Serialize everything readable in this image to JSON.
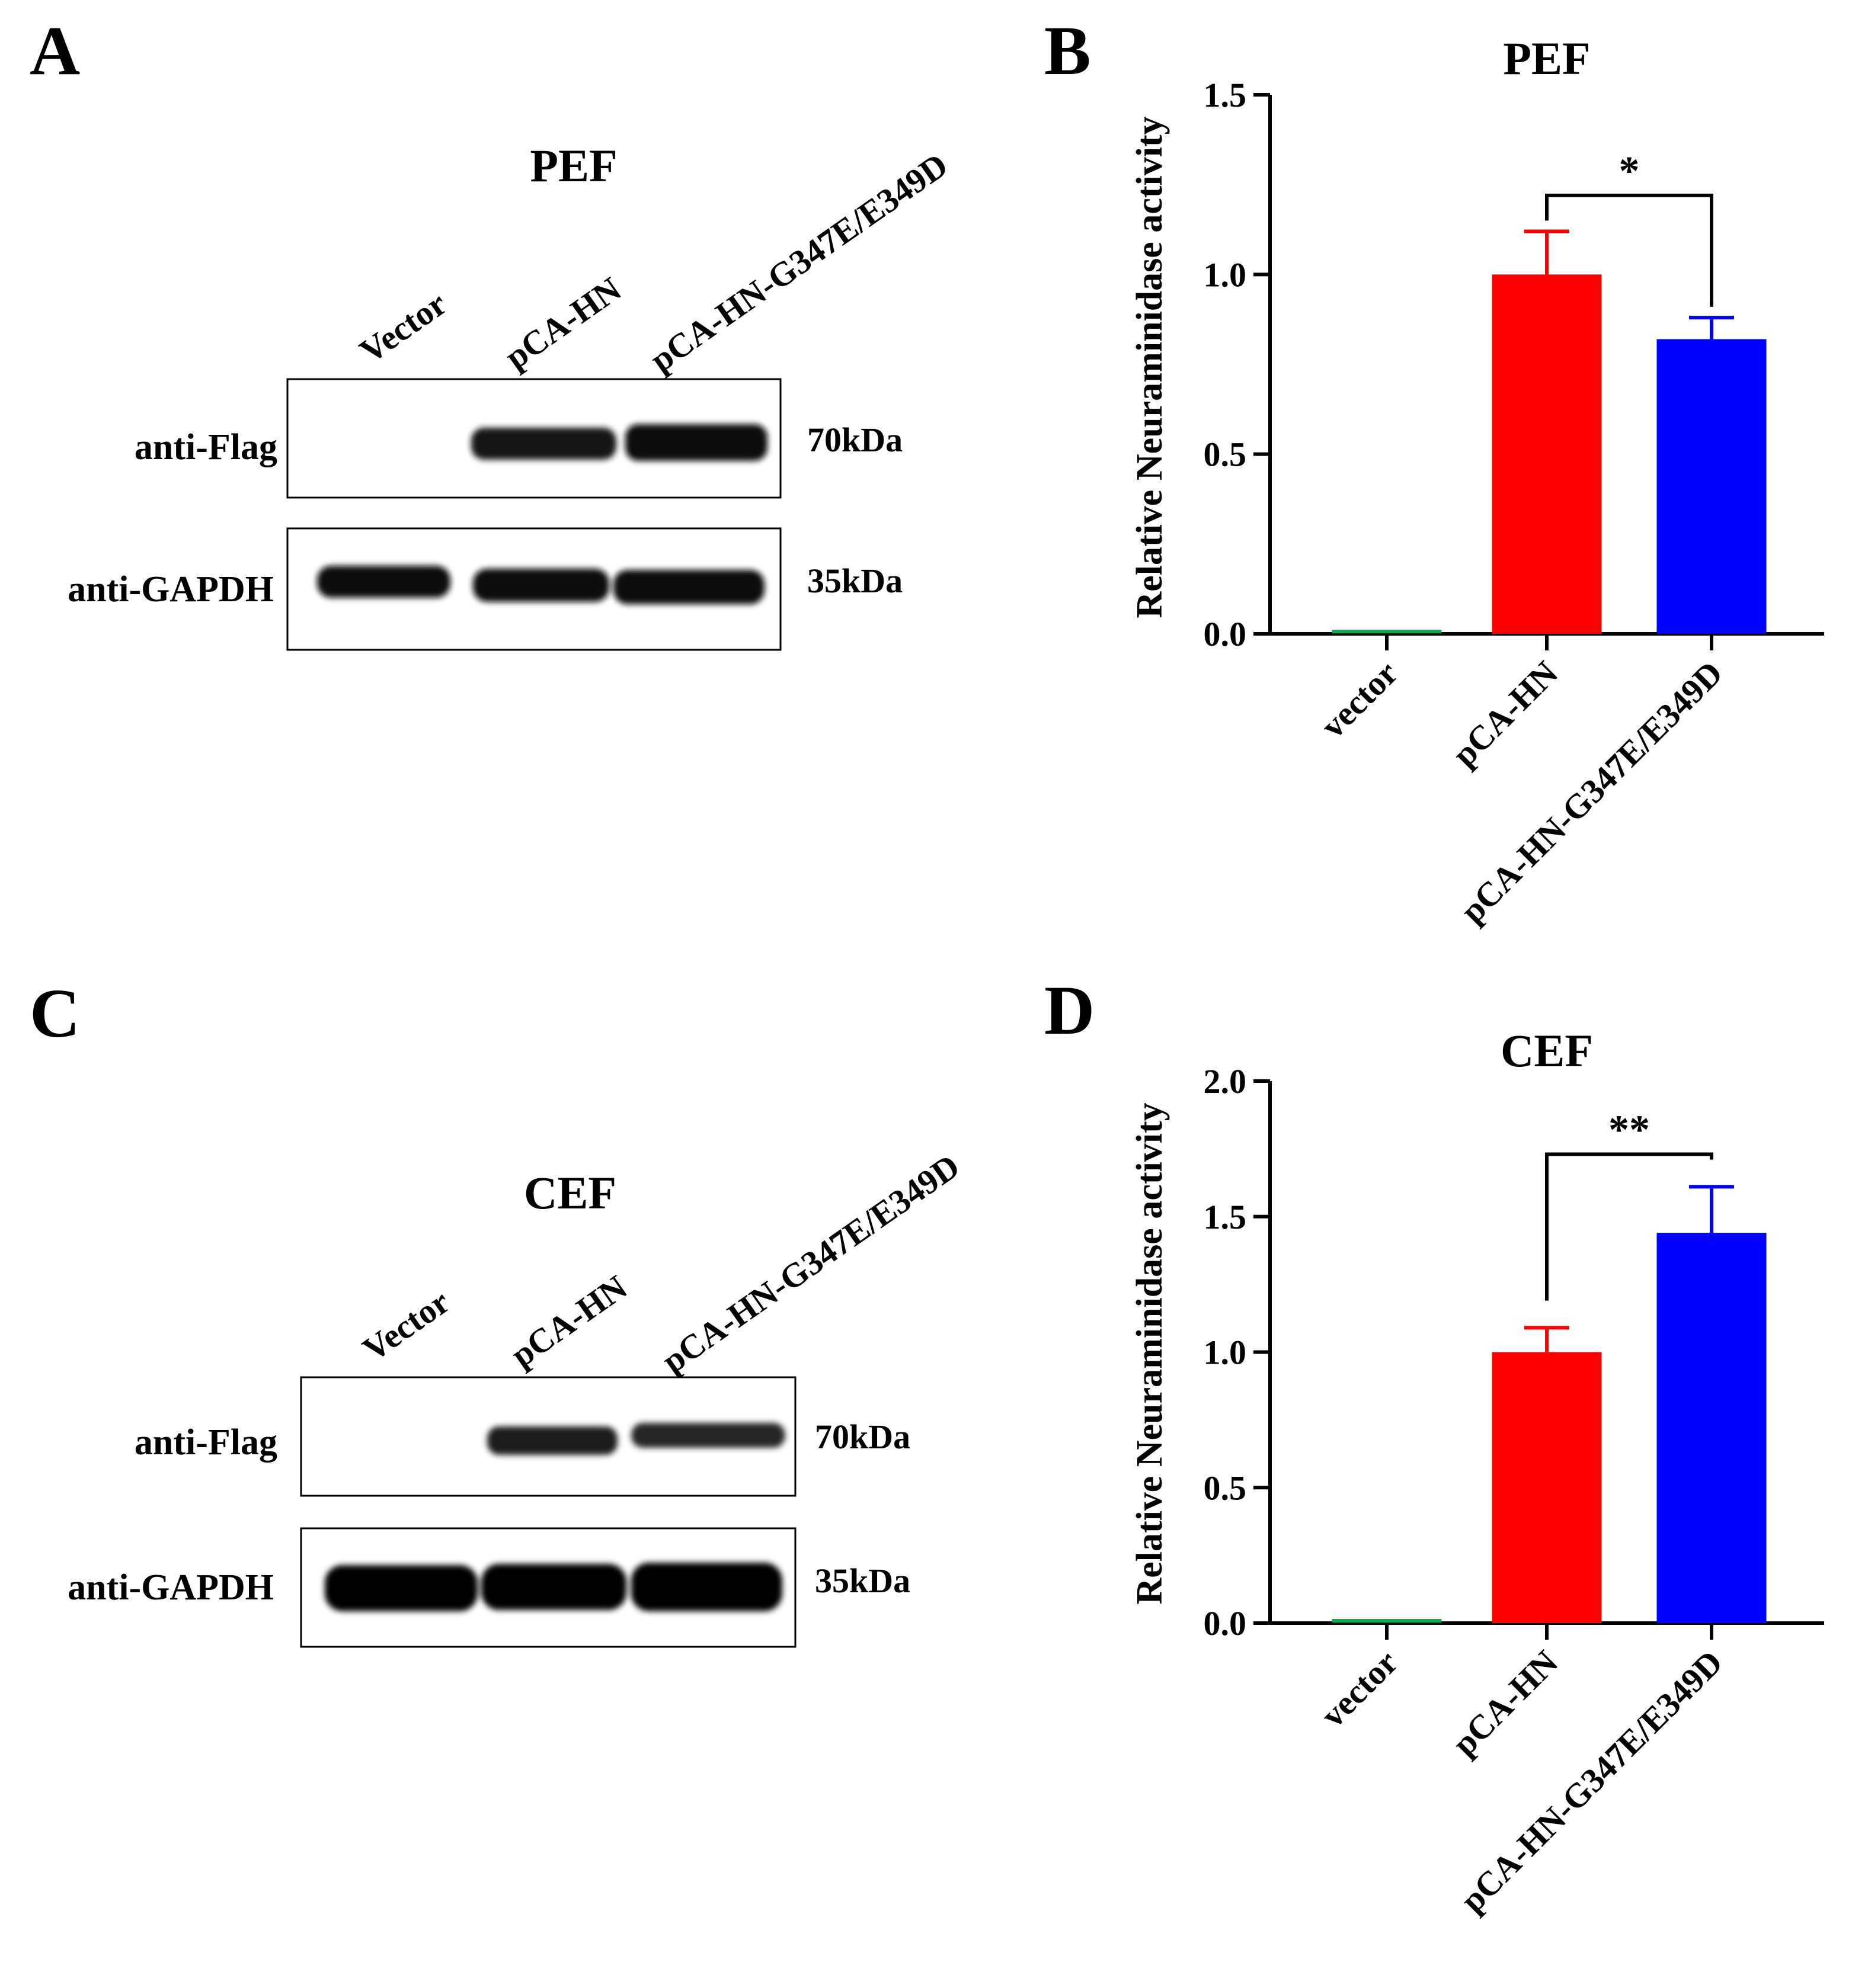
{
  "panels": [
    {
      "id": "A",
      "letter": "A",
      "kind": "blot",
      "title": "PEF",
      "lanes": [
        "Vector",
        "pCA-HN",
        "pCA-HN-G347E/E349D"
      ],
      "blots": [
        {
          "label": "anti-Flag",
          "size": "70kDa",
          "intensity": [
            0,
            0.9,
            1.0
          ]
        },
        {
          "label": "anti-GAPDH",
          "size": "35kDa",
          "intensity": [
            1.0,
            1.0,
            1.0
          ]
        }
      ]
    },
    {
      "id": "B",
      "letter": "B",
      "kind": "chart",
      "title": "PEF",
      "ylabel": "Relative Neuraminidase activity",
      "ticks": [
        "0.0",
        "0.5",
        "1.0",
        "1.5"
      ],
      "significance": "*"
    },
    {
      "id": "C",
      "letter": "C",
      "kind": "blot",
      "title": "CEF",
      "lanes": [
        "Vector",
        "pCA-HN",
        "pCA-HN-G347E/E349D"
      ],
      "blots": [
        {
          "label": "anti-Flag",
          "size": "70kDa",
          "intensity": [
            0,
            0.85,
            0.75
          ]
        },
        {
          "label": "anti-GAPDH",
          "size": "35kDa",
          "intensity": [
            1.0,
            1.0,
            1.0
          ]
        }
      ]
    },
    {
      "id": "D",
      "letter": "D",
      "kind": "chart",
      "title": "CEF",
      "ylabel": "Relative Neuraminidase activity",
      "ticks": [
        "0.0",
        "0.5",
        "1.0",
        "1.5",
        "2.0"
      ],
      "significance": "**"
    }
  ],
  "chart_data": [
    {
      "type": "bar",
      "title": "PEF",
      "ylabel": "Relative Neuraminidase activity",
      "categories": [
        "vector",
        "pCA-HN",
        "pCA-HN-G347E/E349D"
      ],
      "values": [
        0.01,
        1.0,
        0.82
      ],
      "errors": [
        0,
        0.12,
        0.06
      ],
      "colors": [
        "#00b050",
        "#ff0000",
        "#0000ff"
      ],
      "ylim": [
        0,
        1.5
      ],
      "yticks": [
        0.0,
        0.5,
        1.0,
        1.5
      ],
      "comparison": {
        "between": [
          "pCA-HN",
          "pCA-HN-G347E/E349D"
        ],
        "label": "*"
      }
    },
    {
      "type": "bar",
      "title": "CEF",
      "ylabel": "Relative Neuraminidase activity",
      "categories": [
        "vector",
        "pCA-HN",
        "pCA-HN-G347E/E349D"
      ],
      "values": [
        0.01,
        1.0,
        1.44
      ],
      "errors": [
        0,
        0.09,
        0.17
      ],
      "colors": [
        "#00b050",
        "#ff0000",
        "#0000ff"
      ],
      "ylim": [
        0,
        2.0
      ],
      "yticks": [
        0.0,
        0.5,
        1.0,
        1.5,
        2.0
      ],
      "comparison": {
        "between": [
          "pCA-HN",
          "pCA-HN-G347E/E349D"
        ],
        "label": "**"
      }
    }
  ]
}
